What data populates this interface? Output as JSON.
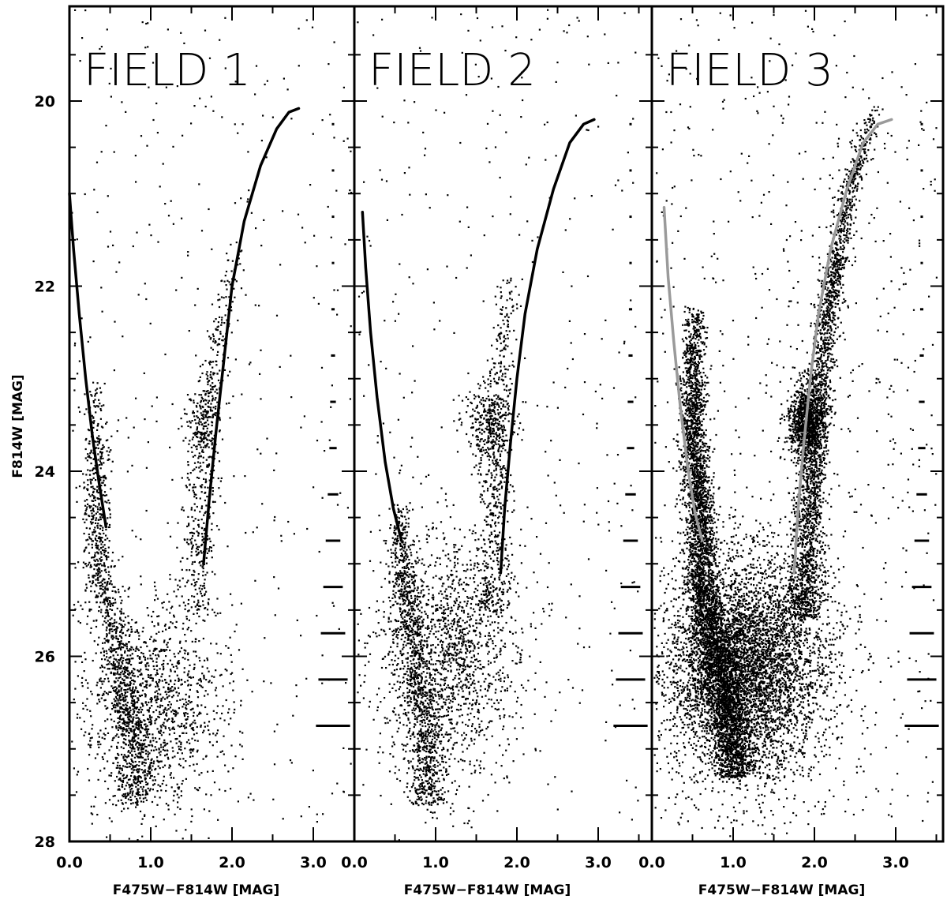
{
  "figure": {
    "ylabel": "F814W [MAG]"
  },
  "chart_data": [
    {
      "type": "scatter",
      "title": "FIELD 1",
      "xlabel": "F475W−F814W [MAG]",
      "ylabel": "F814W [MAG]",
      "xlim": [
        0.0,
        3.55
      ],
      "ylim": [
        28.0,
        19.0
      ],
      "y_inverted": true,
      "xticks": [
        "0.0",
        "1.0",
        "2.0",
        "3.0"
      ],
      "yticks": [
        "20",
        "22",
        "24",
        "26",
        "28"
      ],
      "grid": false,
      "point_density": 0.7,
      "populations": [
        {
          "name": "",
          "kind": "blue_plume",
          "y_range": [
            23.0,
            27.6
          ],
          "color_center": [
            [
              23.0,
              0.3
            ],
            [
              25.0,
              0.35
            ],
            [
              26.0,
              0.6
            ],
            [
              27.0,
              0.8
            ]
          ],
          "weight": 0.38
        },
        {
          "name": "",
          "kind": "red_giant_branch",
          "y_range": [
            21.5,
            25.5
          ],
          "color_center": [
            [
              21.5,
              2.05
            ],
            [
              23.5,
              1.65
            ],
            [
              25.5,
              1.55
            ]
          ],
          "weight": 0.14
        },
        {
          "name": "",
          "kind": "red_clump",
          "center": [
            1.65,
            23.5
          ],
          "spread": [
            0.12,
            0.25
          ],
          "weight": 0.05
        },
        {
          "name": "",
          "kind": "faint_blob",
          "center": [
            1.05,
            26.5
          ],
          "spread": [
            0.45,
            0.6
          ],
          "weight": 0.33
        },
        {
          "name": "",
          "kind": "field",
          "x_range": [
            0.0,
            3.5
          ],
          "y_range": [
            19.0,
            27.8
          ],
          "weight": 0.1
        }
      ],
      "isochrones": [
        {
          "color": "#000000",
          "points": [
            [
              0.0,
              21.0
            ],
            [
              0.05,
              21.6
            ],
            [
              0.12,
              22.3
            ],
            [
              0.2,
              23.0
            ],
            [
              0.28,
              23.6
            ],
            [
              0.36,
              24.1
            ],
            [
              0.45,
              24.6
            ]
          ]
        },
        {
          "color": "#000000",
          "points": [
            [
              1.65,
              25.0
            ],
            [
              1.72,
              24.3
            ],
            [
              1.8,
              23.6
            ],
            [
              1.9,
              22.8
            ],
            [
              2.0,
              22.0
            ],
            [
              2.15,
              21.3
            ],
            [
              2.35,
              20.7
            ],
            [
              2.55,
              20.3
            ],
            [
              2.7,
              20.12
            ],
            [
              2.82,
              20.08
            ]
          ]
        }
      ],
      "error_bars": [
        {
          "mag": 20.25,
          "err_color": 0.01
        },
        {
          "mag": 20.75,
          "err_color": 0.01
        },
        {
          "mag": 21.25,
          "err_color": 0.015
        },
        {
          "mag": 21.75,
          "err_color": 0.015
        },
        {
          "mag": 22.25,
          "err_color": 0.02
        },
        {
          "mag": 22.75,
          "err_color": 0.025
        },
        {
          "mag": 23.25,
          "err_color": 0.035
        },
        {
          "mag": 23.75,
          "err_color": 0.045
        },
        {
          "mag": 24.25,
          "err_color": 0.065
        },
        {
          "mag": 24.75,
          "err_color": 0.09
        },
        {
          "mag": 25.25,
          "err_color": 0.12
        },
        {
          "mag": 25.75,
          "err_color": 0.15
        },
        {
          "mag": 26.25,
          "err_color": 0.18
        },
        {
          "mag": 26.75,
          "err_color": 0.21
        }
      ]
    },
    {
      "type": "scatter",
      "title": "FIELD 2",
      "xlabel": "F475W−F814W [MAG]",
      "ylabel": "F814W [MAG]",
      "xlim": [
        0.0,
        3.55
      ],
      "ylim": [
        28.0,
        19.0
      ],
      "y_inverted": true,
      "xticks": [
        "0.0",
        "1.0",
        "2.0",
        "3.0"
      ],
      "yticks": [
        "20",
        "22",
        "24",
        "26",
        "28"
      ],
      "grid": false,
      "point_density": 0.75,
      "populations": [
        {
          "name": "",
          "kind": "blue_plume",
          "y_range": [
            24.3,
            27.6
          ],
          "color_center": [
            [
              24.3,
              0.55
            ],
            [
              25.2,
              0.6
            ],
            [
              26.0,
              0.75
            ],
            [
              27.0,
              0.9
            ]
          ],
          "weight": 0.3
        },
        {
          "name": "",
          "kind": "red_giant_branch",
          "y_range": [
            21.8,
            25.5
          ],
          "color_center": [
            [
              21.8,
              1.9
            ],
            [
              23.0,
              1.78
            ],
            [
              24.5,
              1.72
            ],
            [
              25.5,
              1.7
            ]
          ],
          "weight": 0.14
        },
        {
          "name": "",
          "kind": "red_clump",
          "center": [
            1.65,
            23.5
          ],
          "spread": [
            0.14,
            0.22
          ],
          "weight": 0.08
        },
        {
          "name": "",
          "kind": "faint_blob",
          "center": [
            1.15,
            26.0
          ],
          "spread": [
            0.45,
            0.65
          ],
          "weight": 0.38
        },
        {
          "name": "",
          "kind": "field",
          "x_range": [
            0.0,
            3.5
          ],
          "y_range": [
            19.0,
            27.8
          ],
          "weight": 0.1
        }
      ],
      "isochrones": [
        {
          "color": "#000000",
          "points": [
            [
              0.1,
              21.2
            ],
            [
              0.14,
              21.8
            ],
            [
              0.2,
              22.5
            ],
            [
              0.28,
              23.2
            ],
            [
              0.38,
              23.9
            ],
            [
              0.48,
              24.4
            ],
            [
              0.58,
              24.75
            ]
          ]
        },
        {
          "color": "#000000",
          "points": [
            [
              1.8,
              25.1
            ],
            [
              1.85,
              24.4
            ],
            [
              1.92,
              23.7
            ],
            [
              2.0,
              23.0
            ],
            [
              2.1,
              22.3
            ],
            [
              2.25,
              21.6
            ],
            [
              2.45,
              20.95
            ],
            [
              2.65,
              20.45
            ],
            [
              2.82,
              20.25
            ],
            [
              2.95,
              20.2
            ]
          ]
        }
      ],
      "error_bars": [
        {
          "mag": 20.25,
          "err_color": 0.01
        },
        {
          "mag": 20.75,
          "err_color": 0.01
        },
        {
          "mag": 21.25,
          "err_color": 0.015
        },
        {
          "mag": 21.75,
          "err_color": 0.015
        },
        {
          "mag": 22.25,
          "err_color": 0.02
        },
        {
          "mag": 22.75,
          "err_color": 0.025
        },
        {
          "mag": 23.25,
          "err_color": 0.035
        },
        {
          "mag": 23.75,
          "err_color": 0.045
        },
        {
          "mag": 24.25,
          "err_color": 0.065
        },
        {
          "mag": 24.75,
          "err_color": 0.09
        },
        {
          "mag": 25.25,
          "err_color": 0.12
        },
        {
          "mag": 25.75,
          "err_color": 0.15
        },
        {
          "mag": 26.25,
          "err_color": 0.18
        },
        {
          "mag": 26.75,
          "err_color": 0.21
        }
      ]
    },
    {
      "type": "scatter",
      "title": "FIELD 3",
      "xlabel": "F475W−F814W [MAG]",
      "ylabel": "F814W [MAG]",
      "xlim": [
        0.0,
        3.55
      ],
      "ylim": [
        28.0,
        19.0
      ],
      "y_inverted": true,
      "xticks": [
        "0.0",
        "1.0",
        "2.0",
        "3.0"
      ],
      "yticks": [
        "20",
        "22",
        "24",
        "26",
        "28"
      ],
      "grid": false,
      "point_density": 2.6,
      "populations": [
        {
          "name": "",
          "kind": "blue_plume",
          "y_range": [
            22.2,
            27.3
          ],
          "color_center": [
            [
              22.2,
              0.5
            ],
            [
              23.5,
              0.5
            ],
            [
              24.5,
              0.58
            ],
            [
              25.3,
              0.62
            ],
            [
              26.0,
              0.8
            ],
            [
              27.0,
              1.0
            ]
          ],
          "weight": 0.32
        },
        {
          "name": "",
          "kind": "red_giant_branch",
          "y_range": [
            20.0,
            25.6
          ],
          "color_center": [
            [
              20.0,
              2.75
            ],
            [
              21.0,
              2.4
            ],
            [
              22.0,
              2.2
            ],
            [
              23.0,
              2.05
            ],
            [
              24.0,
              1.95
            ],
            [
              25.0,
              1.9
            ],
            [
              25.6,
              1.85
            ]
          ],
          "weight": 0.18
        },
        {
          "name": "",
          "kind": "red_clump",
          "center": [
            1.9,
            23.45
          ],
          "spread": [
            0.11,
            0.2
          ],
          "weight": 0.07
        },
        {
          "name": "",
          "kind": "faint_blob",
          "center": [
            1.15,
            26.1
          ],
          "spread": [
            0.5,
            0.6
          ],
          "weight": 0.38
        },
        {
          "name": "",
          "kind": "field",
          "x_range": [
            0.0,
            3.5
          ],
          "y_range": [
            19.0,
            27.8
          ],
          "weight": 0.05
        }
      ],
      "isochrones": [
        {
          "color": "#9a9a9a",
          "points": [
            [
              0.15,
              21.15
            ],
            [
              0.2,
              21.9
            ],
            [
              0.27,
              22.6
            ],
            [
              0.35,
              23.3
            ],
            [
              0.44,
              23.95
            ],
            [
              0.53,
              24.45
            ],
            [
              0.62,
              24.75
            ]
          ]
        },
        {
          "color": "#9a9a9a",
          "points": [
            [
              1.75,
              25.1
            ],
            [
              1.8,
              24.4
            ],
            [
              1.87,
              23.7
            ],
            [
              1.95,
              23.0
            ],
            [
              2.05,
              22.3
            ],
            [
              2.2,
              21.6
            ],
            [
              2.4,
              20.95
            ],
            [
              2.6,
              20.45
            ],
            [
              2.78,
              20.25
            ],
            [
              2.95,
              20.2
            ]
          ]
        }
      ],
      "error_bars": [
        {
          "mag": 20.25,
          "err_color": 0.01
        },
        {
          "mag": 20.75,
          "err_color": 0.01
        },
        {
          "mag": 21.25,
          "err_color": 0.015
        },
        {
          "mag": 21.75,
          "err_color": 0.015
        },
        {
          "mag": 22.25,
          "err_color": 0.02
        },
        {
          "mag": 22.75,
          "err_color": 0.025
        },
        {
          "mag": 23.25,
          "err_color": 0.035
        },
        {
          "mag": 23.75,
          "err_color": 0.045
        },
        {
          "mag": 24.25,
          "err_color": 0.065
        },
        {
          "mag": 24.75,
          "err_color": 0.09
        },
        {
          "mag": 25.25,
          "err_color": 0.12
        },
        {
          "mag": 25.75,
          "err_color": 0.15
        },
        {
          "mag": 26.25,
          "err_color": 0.18
        },
        {
          "mag": 26.75,
          "err_color": 0.21
        }
      ]
    }
  ]
}
